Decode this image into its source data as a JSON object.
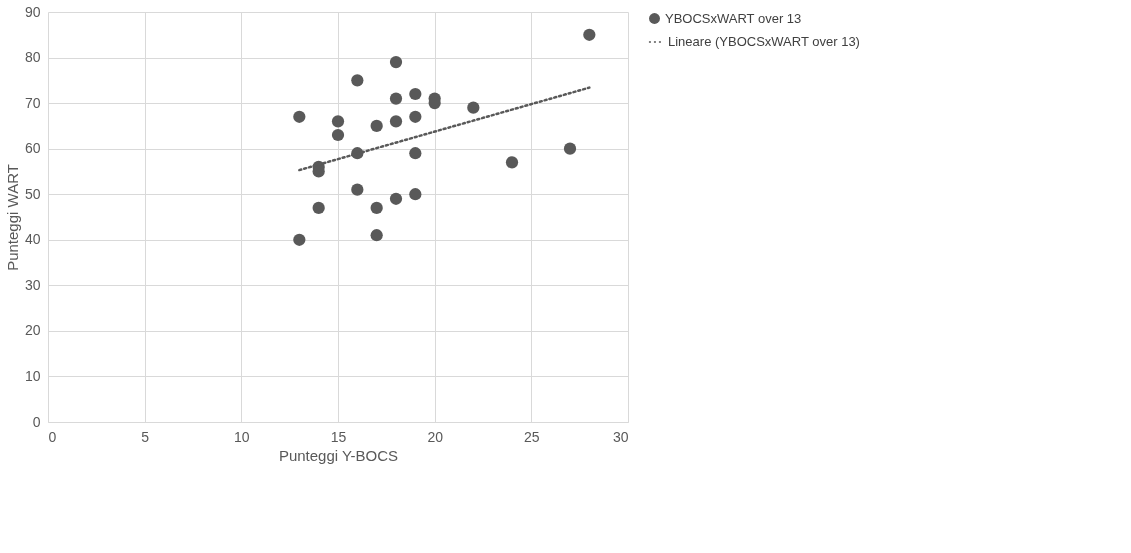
{
  "chart_data": {
    "type": "scatter",
    "xlabel": "Punteggi Y-BOCS",
    "ylabel": "Punteggi WART",
    "xlim": [
      0,
      30
    ],
    "xticks": [
      0,
      5,
      10,
      15,
      20,
      25,
      30
    ],
    "ylim": [
      0,
      90
    ],
    "yticks": [
      0,
      10,
      20,
      30,
      40,
      50,
      60,
      70,
      80,
      90
    ],
    "grid": true,
    "legend": "right",
    "series": [
      {
        "name": "YBOCSxWART over 13",
        "color": "#595959",
        "marker": "circle",
        "x": [
          13,
          13,
          14,
          14,
          14,
          15,
          15,
          16,
          16,
          16,
          17,
          17,
          17,
          18,
          18,
          18,
          18,
          19,
          19,
          19,
          19,
          20,
          20,
          22,
          24,
          27,
          28
        ],
        "values": [
          67,
          40,
          56,
          55,
          47,
          66,
          63,
          75,
          59,
          51,
          65,
          47,
          41,
          79,
          71,
          66,
          49,
          72,
          67,
          59,
          50,
          71,
          70,
          69,
          57,
          60,
          85
        ]
      },
      {
        "name": "Lineare (YBOCSxWART over 13)",
        "color": "#595959",
        "type": "line",
        "marker": "none",
        "line_style": "dotted",
        "x": [
          13,
          28
        ],
        "values": [
          55.3,
          73.4
        ]
      }
    ]
  }
}
